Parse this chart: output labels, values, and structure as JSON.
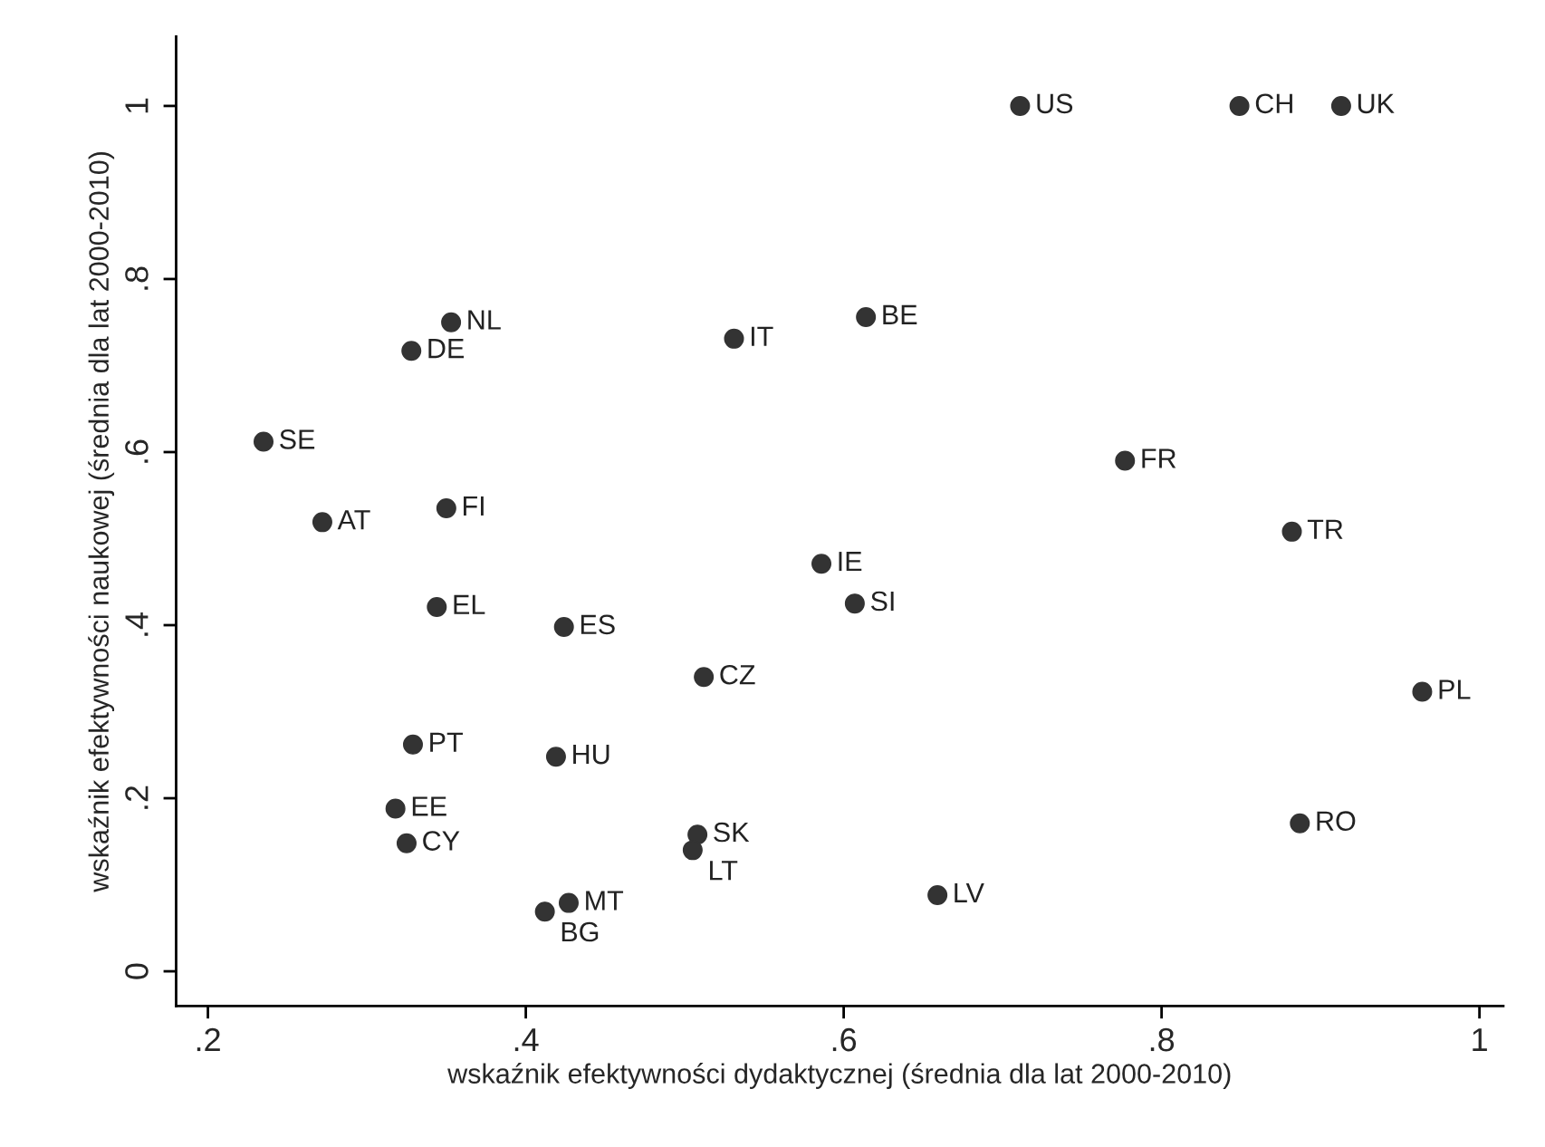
{
  "chart_data": {
    "type": "scatter",
    "xlabel": "wskaźnik efektywności dydaktycznej (średnia dla lat 2000-2010)",
    "ylabel": "wskaźnik efektywności naukowej (średnia dla lat 2000-2010)",
    "xlim": [
      0.18,
      1.015
    ],
    "ylim": [
      -0.04,
      1.08
    ],
    "xticks": [
      {
        "value": 0.2,
        "label": ".2"
      },
      {
        "value": 0.4,
        "label": ".4"
      },
      {
        "value": 0.6,
        "label": ".6"
      },
      {
        "value": 0.8,
        "label": ".8"
      },
      1
    ],
    "yticks": [
      0,
      {
        "value": 0.2,
        "label": ".2"
      },
      {
        "value": 0.4,
        "label": ".4"
      },
      {
        "value": 0.6,
        "label": ".6"
      },
      {
        "value": 0.8,
        "label": ".8"
      },
      1
    ],
    "grid": false,
    "marker": "circle",
    "series": [
      {
        "color": "#333333",
        "x": [
          0.711,
          0.849,
          0.913,
          0.353,
          0.328,
          0.531,
          0.614,
          0.235,
          0.777,
          0.272,
          0.35,
          0.882,
          0.586,
          0.607,
          0.344,
          0.424,
          0.512,
          0.964,
          0.329,
          0.419,
          0.318,
          0.887,
          0.508,
          0.325,
          0.505,
          0.659,
          0.427,
          0.412
        ],
        "values": [
          1,
          1,
          1,
          0.75,
          0.717,
          0.731,
          0.756,
          0.612,
          0.59,
          0.519,
          0.535,
          0.508,
          0.471,
          0.425,
          0.421,
          0.398,
          0.34,
          0.323,
          0.262,
          0.248,
          0.188,
          0.171,
          0.158,
          0.148,
          0.14,
          0.088,
          0.079,
          0.069
        ]
      }
    ],
    "annotations": [
      {
        "text": "US",
        "x": 0.711,
        "y": 1
      },
      {
        "text": "CH",
        "x": 0.849,
        "y": 1
      },
      {
        "text": "UK",
        "x": 0.913,
        "y": 1
      },
      {
        "text": "NL",
        "x": 0.353,
        "y": 0.75
      },
      {
        "text": "DE",
        "x": 0.328,
        "y": 0.717
      },
      {
        "text": "IT",
        "x": 0.531,
        "y": 0.731
      },
      {
        "text": "BE",
        "x": 0.614,
        "y": 0.756
      },
      {
        "text": "SE",
        "x": 0.235,
        "y": 0.612
      },
      {
        "text": "FR",
        "x": 0.777,
        "y": 0.59
      },
      {
        "text": "AT",
        "x": 0.272,
        "y": 0.519
      },
      {
        "text": "FI",
        "x": 0.35,
        "y": 0.535
      },
      {
        "text": "TR",
        "x": 0.882,
        "y": 0.508
      },
      {
        "text": "IE",
        "x": 0.586,
        "y": 0.471
      },
      {
        "text": "SI",
        "x": 0.607,
        "y": 0.425
      },
      {
        "text": "EL",
        "x": 0.344,
        "y": 0.421
      },
      {
        "text": "ES",
        "x": 0.424,
        "y": 0.398
      },
      {
        "text": "CZ",
        "x": 0.512,
        "y": 0.34
      },
      {
        "text": "PL",
        "x": 0.964,
        "y": 0.323
      },
      {
        "text": "PT",
        "x": 0.329,
        "y": 0.262
      },
      {
        "text": "HU",
        "x": 0.419,
        "y": 0.248
      },
      {
        "text": "EE",
        "x": 0.318,
        "y": 0.188
      },
      {
        "text": "RO",
        "x": 0.887,
        "y": 0.171
      },
      {
        "text": "SK",
        "x": 0.508,
        "y": 0.158
      },
      {
        "text": "CY",
        "x": 0.325,
        "y": 0.148
      },
      {
        "text": "LT",
        "x": 0.505,
        "y": 0.14
      },
      {
        "text": "LV",
        "x": 0.659,
        "y": 0.088
      },
      {
        "text": "MT",
        "x": 0.427,
        "y": 0.079
      },
      {
        "text": "BG",
        "x": 0.412,
        "y": 0.069
      }
    ]
  }
}
